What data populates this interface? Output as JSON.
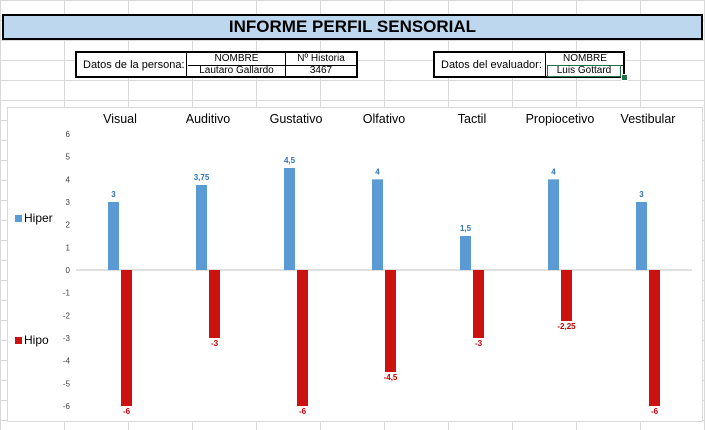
{
  "title": "INFORME PERFIL SENSORIAL",
  "persona": {
    "label": "Datos de la persona:",
    "col_nombre": "NOMBRE",
    "col_historia": "Nº Historia",
    "nombre": "Lautaro Gallardo",
    "historia": "3467"
  },
  "evaluador": {
    "label": "Datos del evaluador:",
    "col_nombre": "NOMBRE",
    "nombre": "Luis Gottard"
  },
  "chart_data": {
    "type": "bar",
    "categories": [
      "Visual",
      "Auditivo",
      "Gustativo",
      "Olfativo",
      "Tactil",
      "Propiocetivo",
      "Vestibular"
    ],
    "series": [
      {
        "name": "Hiper",
        "values": [
          3,
          3.75,
          4.5,
          4,
          1.5,
          4,
          3
        ],
        "labels": [
          "3",
          "3,75",
          "4,5",
          "4",
          "1,5",
          "4",
          "3"
        ],
        "color": "#5b9bd5"
      },
      {
        "name": "Hipo",
        "values": [
          -6,
          -3,
          -6,
          -4.5,
          -3,
          -2.25,
          -6
        ],
        "labels": [
          "-6",
          "-3",
          "-6",
          "-4,5",
          "-3",
          "-2,25",
          "-6"
        ],
        "color": "#cc1111"
      }
    ],
    "ylim": [
      -6,
      6
    ],
    "yticks": [
      "-6",
      "-5",
      "-4",
      "-3",
      "-2",
      "-1",
      "0",
      "1",
      "2",
      "3",
      "4",
      "5",
      "6"
    ],
    "grid": false,
    "legend_position": "left",
    "label_color_hiper": "#2e75b6",
    "label_color_hipo": "#c00000"
  }
}
